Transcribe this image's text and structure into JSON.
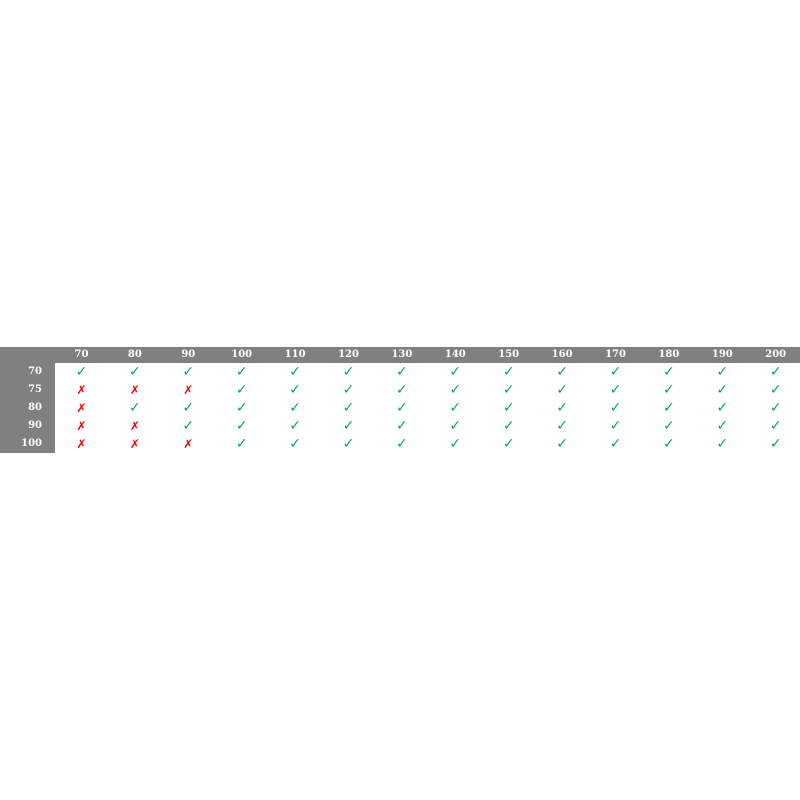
{
  "colors": {
    "header_bg": "#808080",
    "pass": "#00b050",
    "fail": "#ff0000"
  },
  "icons": {
    "pass": "check-icon",
    "fail": "cross-icon"
  },
  "columns": [
    "70",
    "80",
    "90",
    "100",
    "110",
    "120",
    "130",
    "140",
    "150",
    "160",
    "170",
    "180",
    "190",
    "200"
  ],
  "rows": [
    {
      "label": "70",
      "cells": [
        1,
        1,
        1,
        1,
        1,
        1,
        1,
        1,
        1,
        1,
        1,
        1,
        1,
        1
      ]
    },
    {
      "label": "75",
      "cells": [
        0,
        0,
        0,
        1,
        1,
        1,
        1,
        1,
        1,
        1,
        1,
        1,
        1,
        1
      ]
    },
    {
      "label": "80",
      "cells": [
        0,
        1,
        1,
        1,
        1,
        1,
        1,
        1,
        1,
        1,
        1,
        1,
        1,
        1
      ]
    },
    {
      "label": "90",
      "cells": [
        0,
        0,
        1,
        1,
        1,
        1,
        1,
        1,
        1,
        1,
        1,
        1,
        1,
        1
      ]
    },
    {
      "label": "100",
      "cells": [
        0,
        0,
        0,
        1,
        1,
        1,
        1,
        1,
        1,
        1,
        1,
        1,
        1,
        1
      ]
    }
  ]
}
